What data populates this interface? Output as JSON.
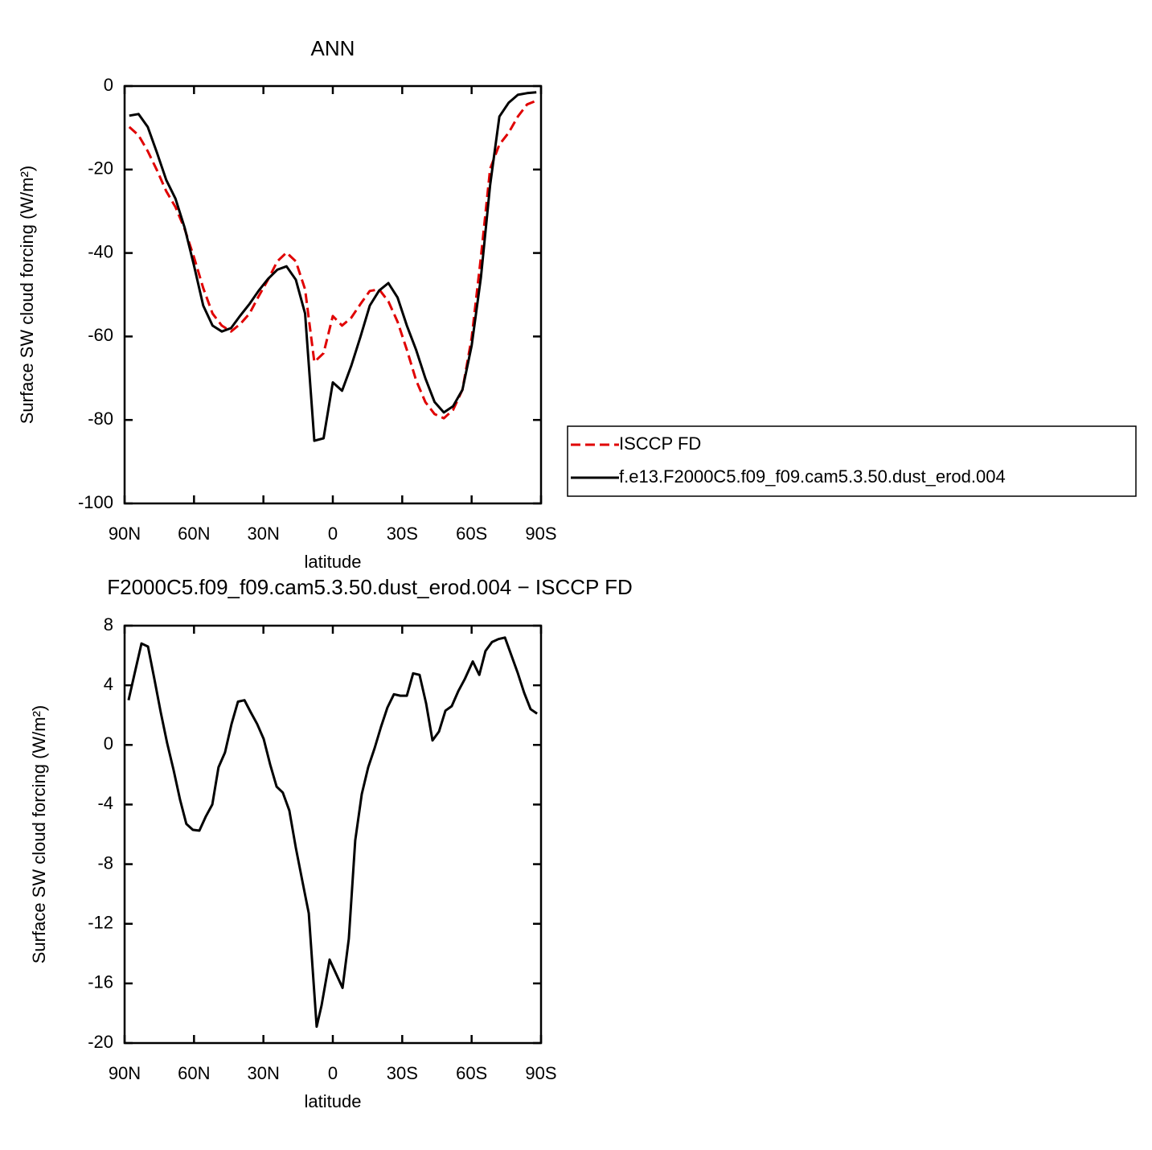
{
  "chart_data": [
    {
      "type": "line",
      "title": "ANN",
      "xlabel": "latitude",
      "ylabel": "Surface SW cloud forcing (W/m²)",
      "x": [
        88,
        84,
        80,
        76,
        72,
        68,
        64,
        60,
        56,
        52,
        48,
        44,
        40,
        36,
        32,
        28,
        24,
        20,
        16,
        12,
        8,
        4,
        0,
        -4,
        -8,
        -12,
        -16,
        -20,
        -24,
        -28,
        -32,
        -36,
        -40,
        -44,
        -48,
        -52,
        -56,
        -60,
        -64,
        -68,
        -72,
        -76,
        -80,
        -84,
        -88
      ],
      "series": [
        {
          "name": "ISCCP FD",
          "color": "#e00000",
          "dash": "dashed",
          "values": [
            -9.8,
            -11.8,
            -15.6,
            -20.2,
            -25.2,
            -29,
            -34.3,
            -41,
            -48.4,
            -54.5,
            -57.4,
            -58.8,
            -57,
            -54.5,
            -50.3,
            -46.4,
            -42,
            -39.9,
            -42,
            -48.7,
            -66.1,
            -64,
            -55.1,
            -57.4,
            -55.5,
            -52.2,
            -49.1,
            -48.7,
            -51.6,
            -56.5,
            -63.2,
            -70.5,
            -75.7,
            -78.6,
            -79.6,
            -77.6,
            -72.8,
            -60.3,
            -41,
            -19.8,
            -14,
            -11.2,
            -7.3,
            -4.4,
            -3.5
          ]
        },
        {
          "name": "f.e13.F2000C5.f09_f09.cam5.3.50.dust_erod.004",
          "color": "#000000",
          "dash": "solid",
          "values": [
            -7.1,
            -6.7,
            -9.8,
            -16,
            -22.5,
            -27,
            -34,
            -43,
            -52.6,
            -57.4,
            -58.8,
            -58,
            -55,
            -52.2,
            -49,
            -46.2,
            -44,
            -43.2,
            -46.4,
            -54.5,
            -85,
            -84.4,
            -71,
            -73,
            -67,
            -60,
            -52.6,
            -49,
            -47.2,
            -50.7,
            -57.4,
            -63.2,
            -70,
            -75.7,
            -78.2,
            -76.7,
            -72.8,
            -62.2,
            -45.9,
            -23.7,
            -7.3,
            -4,
            -2.1,
            -1.7,
            -1.5
          ]
        }
      ],
      "xlim": [
        90,
        -90
      ],
      "xticks": [
        {
          "value": 90,
          "label": "90N"
        },
        {
          "value": 60,
          "label": "60N"
        },
        {
          "value": 30,
          "label": "30N"
        },
        0,
        {
          "value": -30,
          "label": "30S"
        },
        {
          "value": -60,
          "label": "60S"
        },
        {
          "value": -90,
          "label": "90S"
        }
      ],
      "ylim": [
        -100,
        0
      ],
      "yticks": [
        -100,
        -80,
        -60,
        -40,
        -20,
        0
      ],
      "legend": "right"
    },
    {
      "type": "line",
      "title": "F2000C5.f09_f09.cam5.3.50.dust_erod.004 − ISCCP FD",
      "xlabel": "latitude",
      "ylabel": "Surface SW cloud forcing (W/m²)",
      "x": [
        88.3,
        85.5,
        82.7,
        79.9,
        77.1,
        74.4,
        71.6,
        68.8,
        66.0,
        63.3,
        60.5,
        57.7,
        54.9,
        52.1,
        49.4,
        46.6,
        43.8,
        41.0,
        38.2,
        35.5,
        32.7,
        29.9,
        27.1,
        24.3,
        21.6,
        18.8,
        16.0,
        13.2,
        10.4,
        7.0,
        4.9,
        1.4,
        -4.2,
        -6.9,
        -9.7,
        -12.5,
        -15.3,
        -18.1,
        -20.8,
        -23.6,
        -26.4,
        -29.2,
        -32.0,
        -34.7,
        -37.5,
        -40.3,
        -43.1,
        -45.9,
        -48.7,
        -51.4,
        -54.2,
        -57.0,
        -60.5,
        -63.3,
        -66.0,
        -68.8,
        -71.6,
        -74.4,
        -77.2,
        -80.0,
        -82.7,
        -85.5,
        -88.3
      ],
      "series": [
        {
          "color": "#000000",
          "values": [
            3.0,
            4.9,
            6.8,
            6.6,
            4.4,
            2.2,
            0.1,
            -1.7,
            -3.7,
            -5.3,
            -5.7,
            -5.75,
            -4.8,
            -4.0,
            -1.5,
            -0.5,
            1.4,
            2.9,
            3.0,
            2.2,
            1.4,
            0.4,
            -1.3,
            -2.8,
            -3.2,
            -4.4,
            -6.9,
            -9.1,
            -11.3,
            -18.9,
            -17.5,
            -14.4,
            -16.3,
            -13.0,
            -6.4,
            -3.3,
            -1.5,
            -0.2,
            1.2,
            2.5,
            3.4,
            3.3,
            3.3,
            4.8,
            4.7,
            2.8,
            0.3,
            0.9,
            2.3,
            2.6,
            3.6,
            4.4,
            5.6,
            4.7,
            6.3,
            6.9,
            7.1,
            7.2,
            6.0,
            4.8,
            3.5,
            2.4,
            2.1
          ]
        }
      ],
      "xlim": [
        90,
        -90
      ],
      "xticks": [
        {
          "value": 90,
          "label": "90N"
        },
        {
          "value": 60,
          "label": "60N"
        },
        {
          "value": 30,
          "label": "30N"
        },
        0,
        {
          "value": -30,
          "label": "30S"
        },
        {
          "value": -60,
          "label": "60S"
        },
        {
          "value": -90,
          "label": "90S"
        }
      ],
      "ylim": [
        -20,
        8
      ],
      "yticks": [
        -20,
        -16,
        -12,
        -8,
        -4,
        0,
        4,
        8
      ]
    }
  ]
}
